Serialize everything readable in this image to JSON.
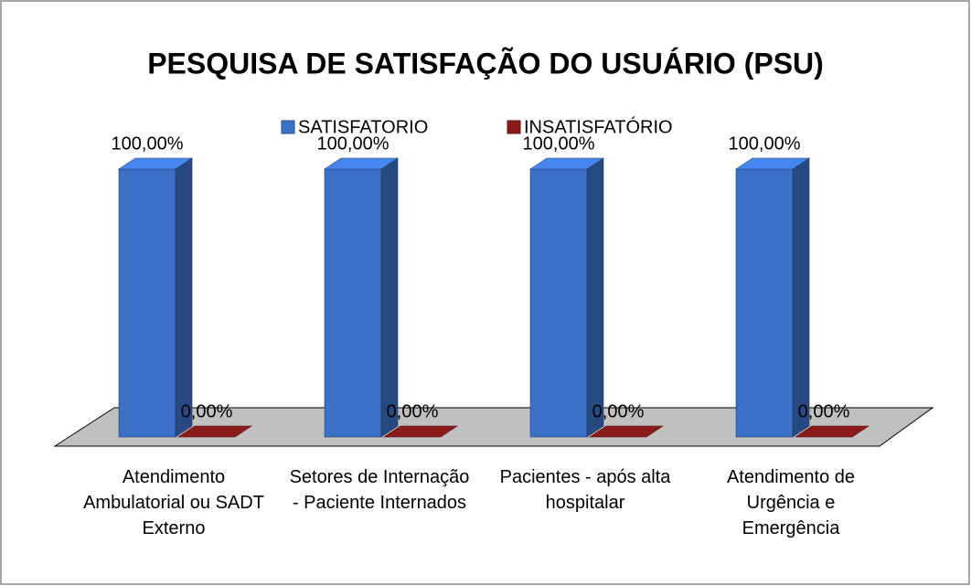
{
  "chart_data": {
    "type": "bar3d",
    "title": "PESQUISA DE SATISFAÇÃO DO USUÁRIO (PSU)",
    "categories": [
      "Atendimento Ambulatorial ou SADT Externo",
      "Setores de Internação - Paciente Internados",
      "Pacientes - após alta hospitalar",
      "Atendimento de Urgência e Emergência"
    ],
    "series": [
      {
        "name": "SATISFATORIO",
        "color": "#3b70c6",
        "values": [
          100,
          100,
          100,
          100
        ],
        "value_labels": [
          "100,00%",
          "100,00%",
          "100,00%",
          "100,00%"
        ]
      },
      {
        "name": "INSATISFATÓRIO",
        "color": "#8b1a1a",
        "values": [
          0,
          0,
          0,
          0
        ],
        "value_labels": [
          "0,00%",
          "0,00%",
          "0,00%",
          "0,00%"
        ]
      }
    ],
    "legend": "top"
  }
}
